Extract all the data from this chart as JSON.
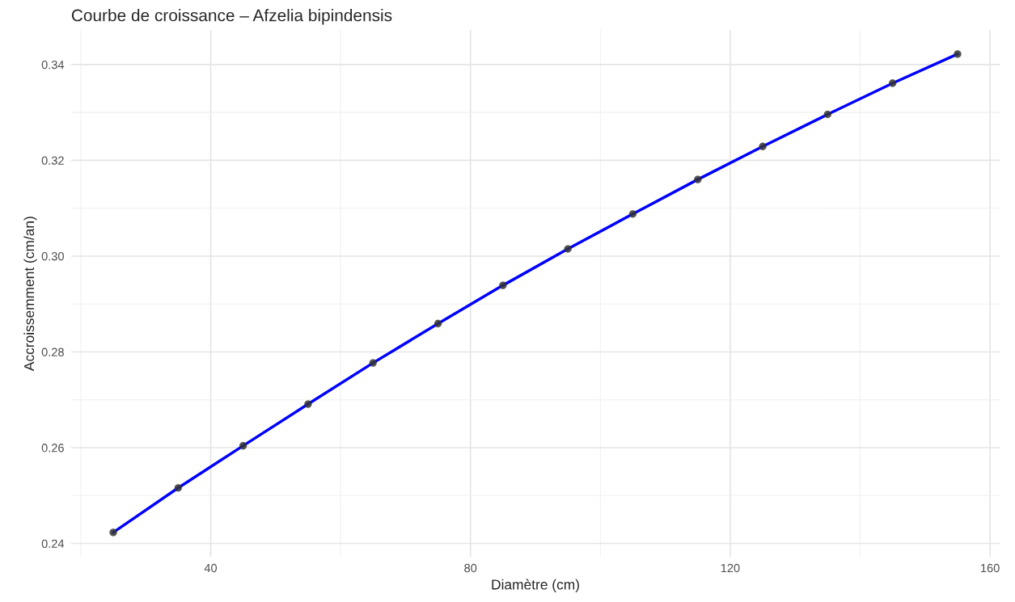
{
  "chart_data": {
    "type": "line",
    "title": "Courbe de croissance – Afzelia bipindensis",
    "xlabel": "Diamètre (cm)",
    "ylabel": "Accroissemment (cm/an)",
    "x": [
      25,
      35,
      45,
      55,
      65,
      75,
      85,
      95,
      105,
      115,
      125,
      135,
      145,
      155
    ],
    "series": [
      {
        "color": "#0000ff",
        "values": [
          0.2423,
          0.2516,
          0.2604,
          0.2691,
          0.2777,
          0.2859,
          0.2939,
          0.3015,
          0.3088,
          0.316,
          0.3229,
          0.3296,
          0.3361,
          0.3422
        ]
      },
      {
        "type": "scatter",
        "color": "#333333",
        "values": [
          0.2423,
          0.2516,
          0.2604,
          0.2691,
          0.2777,
          0.2859,
          0.2939,
          0.3015,
          0.3088,
          0.316,
          0.3229,
          0.3296,
          0.3361,
          0.3422
        ]
      }
    ],
    "xlim": [
      18.5,
      161.5
    ],
    "xticks": [
      40,
      80,
      120,
      160
    ],
    "ylim": [
      0.2372,
      0.3472
    ],
    "yticks": [
      {
        "value": 0.24,
        "label": "0.24"
      },
      {
        "value": 0.26,
        "label": "0.26"
      },
      {
        "value": 0.28,
        "label": "0.28"
      },
      {
        "value": 0.3,
        "label": "0.30"
      },
      {
        "value": 0.32,
        "label": "0.32"
      },
      {
        "value": 0.34,
        "label": "0.34"
      }
    ],
    "grid": true
  }
}
